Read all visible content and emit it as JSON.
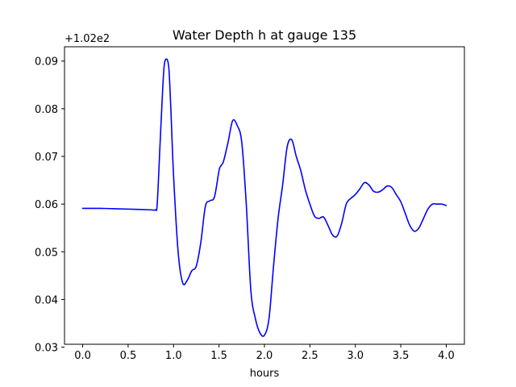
{
  "chart_data": {
    "type": "line",
    "title": "Water Depth h at gauge 135",
    "xlabel": "hours",
    "ylabel": "",
    "y_offset_label": "+1.02e2",
    "xlim": [
      -0.2,
      4.2
    ],
    "ylim": [
      0.0306,
      0.093
    ],
    "x_ticks": [
      0.0,
      0.5,
      1.0,
      1.5,
      2.0,
      2.5,
      3.0,
      3.5,
      4.0
    ],
    "x_tick_labels": [
      "0.0",
      "0.5",
      "1.0",
      "1.5",
      "2.0",
      "2.5",
      "3.0",
      "3.5",
      "4.0"
    ],
    "y_ticks": [
      0.03,
      0.04,
      0.05,
      0.06,
      0.07,
      0.08,
      0.09
    ],
    "y_tick_labels": [
      "0.03",
      "0.04",
      "0.05",
      "0.06",
      "0.07",
      "0.08",
      "0.09"
    ],
    "grid": false,
    "series": [
      {
        "color": "#0000ff",
        "x": [
          0.0,
          0.2,
          0.4,
          0.6,
          0.75,
          0.8,
          0.82,
          0.85,
          0.88,
          0.9,
          0.93,
          0.95,
          0.97,
          1.0,
          1.05,
          1.1,
          1.15,
          1.2,
          1.25,
          1.3,
          1.35,
          1.4,
          1.45,
          1.5,
          1.52,
          1.55,
          1.6,
          1.65,
          1.7,
          1.75,
          1.8,
          1.85,
          1.9,
          1.95,
          2.0,
          2.05,
          2.1,
          2.15,
          2.2,
          2.25,
          2.3,
          2.35,
          2.4,
          2.45,
          2.5,
          2.55,
          2.6,
          2.65,
          2.7,
          2.75,
          2.8,
          2.85,
          2.9,
          2.95,
          3.0,
          3.05,
          3.1,
          3.15,
          3.2,
          3.25,
          3.3,
          3.35,
          3.4,
          3.45,
          3.5,
          3.55,
          3.6,
          3.65,
          3.7,
          3.75,
          3.8,
          3.85,
          3.9,
          3.95,
          4.0
        ],
        "values": [
          0.0591,
          0.0591,
          0.059,
          0.0589,
          0.0588,
          0.0588,
          0.06,
          0.072,
          0.084,
          0.0895,
          0.0903,
          0.088,
          0.08,
          0.066,
          0.05,
          0.0435,
          0.044,
          0.046,
          0.047,
          0.052,
          0.0595,
          0.0607,
          0.0615,
          0.067,
          0.068,
          0.069,
          0.073,
          0.0775,
          0.0765,
          0.073,
          0.06,
          0.042,
          0.036,
          0.033,
          0.0325,
          0.036,
          0.047,
          0.057,
          0.064,
          0.072,
          0.0735,
          0.07,
          0.067,
          0.063,
          0.06,
          0.0575,
          0.057,
          0.0573,
          0.0555,
          0.0535,
          0.0533,
          0.056,
          0.06,
          0.0612,
          0.062,
          0.0632,
          0.0645,
          0.064,
          0.0627,
          0.0625,
          0.063,
          0.0638,
          0.0635,
          0.062,
          0.0605,
          0.058,
          0.0555,
          0.0543,
          0.055,
          0.057,
          0.059,
          0.06,
          0.06,
          0.06,
          0.0597
        ]
      }
    ]
  }
}
